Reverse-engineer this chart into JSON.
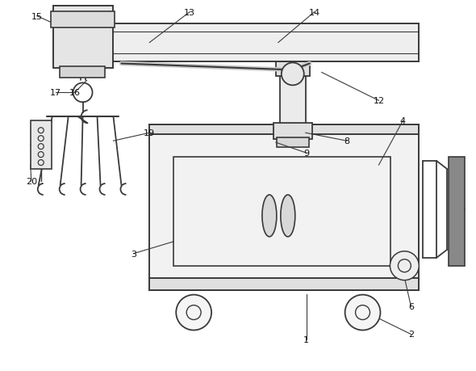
{
  "bg_color": "#ffffff",
  "line_color": "#3a3a3a",
  "fig_w": 5.9,
  "fig_h": 4.6,
  "dpi": 100,
  "font_size": 8.0
}
